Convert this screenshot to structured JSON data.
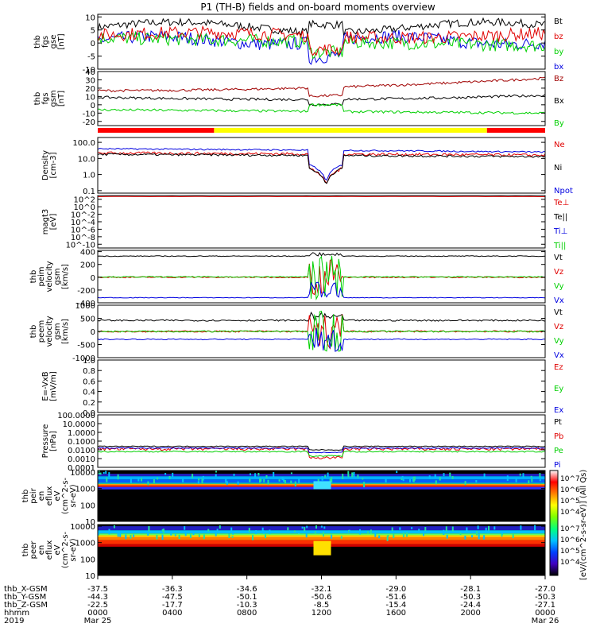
{
  "title": "P1 (TH-B) fields and on-board moments overview",
  "panels": [
    {
      "id": "fgs-gse",
      "label_lines": [
        "thb",
        "fgs",
        "gse",
        "[nT]"
      ],
      "ticks": [
        "10",
        "5",
        "0",
        "-5",
        "-10"
      ],
      "tick_vals": [
        10,
        5,
        0,
        -5,
        -10
      ],
      "ymin": -10,
      "ymax": 11,
      "legend": [
        {
          "name": "Bt",
          "color": "#000000"
        },
        {
          "name": "bz",
          "color": "#e00000"
        },
        {
          "name": "by",
          "color": "#00d000"
        },
        {
          "name": "bx",
          "color": "#0000e0"
        }
      ]
    },
    {
      "id": "fgs-gsm",
      "label_lines": [
        "thb",
        "fgs",
        "gsm",
        "[nT]"
      ],
      "ticks": [
        "40",
        "30",
        "20",
        "10",
        "0",
        "-10",
        "-20"
      ],
      "tick_vals": [
        40,
        30,
        20,
        10,
        0,
        -10,
        -20
      ],
      "ymin": -25,
      "ymax": 40,
      "legend": [
        {
          "name": "Bz",
          "color": "#a00000"
        },
        {
          "name": "Bx",
          "color": "#000000"
        },
        {
          "name": "By",
          "color": "#00d000"
        }
      ]
    },
    {
      "id": "density",
      "label_lines": [
        "Density",
        "[cm-3]"
      ],
      "ticks": [
        "100.0",
        "10.0",
        "1.0",
        "0.1"
      ],
      "tick_vals": [
        100,
        10,
        1,
        0.1
      ],
      "log": true,
      "ymin": 0.07,
      "ymax": 200,
      "legend": [
        {
          "name": "Ne",
          "color": "#e00000"
        },
        {
          "name": "Ni",
          "color": "#000000"
        },
        {
          "name": "Npot",
          "color": "#0000e0"
        }
      ]
    },
    {
      "id": "temperature",
      "label_lines": [
        "magt3",
        "[eV]"
      ],
      "ticks": [
        "10^2",
        "10^0",
        "10^-2",
        "10^-4",
        "10^-6",
        "10^-8",
        "10^-10"
      ],
      "tick_vals": [
        2,
        0,
        -2,
        -4,
        -6,
        -8,
        -10
      ],
      "ymin": -11,
      "ymax": 3,
      "legend": [
        {
          "name": "Te⊥",
          "color": "#e00000"
        },
        {
          "name": "Te||",
          "color": "#000000"
        },
        {
          "name": "Ti⊥",
          "color": "#0000e0"
        },
        {
          "name": "Ti||",
          "color": "#00d000"
        }
      ]
    },
    {
      "id": "peim-velocity",
      "label_lines": [
        "thb",
        "peim",
        "velocity",
        "gsm",
        "[km/s]"
      ],
      "ticks": [
        "400",
        "200",
        "0",
        "-200",
        "-400"
      ],
      "tick_vals": [
        400,
        200,
        0,
        -200,
        -400
      ],
      "ymin": -400,
      "ymax": 420,
      "legend": [
        {
          "name": "Vt",
          "color": "#000000"
        },
        {
          "name": "Vz",
          "color": "#e00000"
        },
        {
          "name": "Vy",
          "color": "#00d000"
        },
        {
          "name": "Vx",
          "color": "#0000e0"
        }
      ]
    },
    {
      "id": "peem-velocity",
      "label_lines": [
        "thb",
        "peem",
        "velocity",
        "gsm",
        "[km/s]"
      ],
      "ticks": [
        "1000",
        "500",
        "0",
        "-500",
        "-1000"
      ],
      "tick_vals": [
        1000,
        500,
        0,
        -500,
        -1000
      ],
      "ymin": -1000,
      "ymax": 1000,
      "legend": [
        {
          "name": "Vt",
          "color": "#000000"
        },
        {
          "name": "Vz",
          "color": "#e00000"
        },
        {
          "name": "Vy",
          "color": "#00d000"
        },
        {
          "name": "Vx",
          "color": "#0000e0"
        }
      ]
    },
    {
      "id": "efield",
      "label_lines": [
        "E=-VxB",
        "[mV/m]"
      ],
      "ticks": [
        "1.0",
        "0.8",
        "0.6",
        "0.4",
        "0.2",
        "0.0"
      ],
      "tick_vals": [
        1,
        0.8,
        0.6,
        0.4,
        0.2,
        0
      ],
      "ymin": 0,
      "ymax": 1,
      "legend": [
        {
          "name": "Ez",
          "color": "#e00000"
        },
        {
          "name": "Ey",
          "color": "#00d000"
        },
        {
          "name": "Ex",
          "color": "#0000e0"
        }
      ]
    },
    {
      "id": "pressure",
      "label_lines": [
        "Pressure",
        "[nPa]"
      ],
      "ticks": [
        "100.0000",
        "10.0000",
        "1.0000",
        "0.1000",
        "0.0100",
        "0.0010",
        "0.0001"
      ],
      "tick_vals": [
        2,
        1,
        0,
        -1,
        -2,
        -3,
        -4
      ],
      "ymin": -4,
      "ymax": 2,
      "legend": [
        {
          "name": "Pt",
          "color": "#000000"
        },
        {
          "name": "Pb",
          "color": "#e00000"
        },
        {
          "name": "Pe",
          "color": "#00d000"
        },
        {
          "name": "Pi",
          "color": "#0000e0"
        }
      ]
    },
    {
      "id": "peir-eflux",
      "label_lines": [
        "thb",
        "peir",
        "en",
        "eflux",
        "eV",
        "(cm^2-s-",
        "sr-eV)"
      ],
      "ticks": [
        "10000",
        "1000",
        "100",
        "10"
      ],
      "tick_vals": [
        4,
        3,
        2,
        1
      ],
      "ymin": 1,
      "ymax": 4.1,
      "legend": []
    },
    {
      "id": "peer-eflux",
      "label_lines": [
        "thb",
        "peer",
        "en",
        "eflux",
        "eV",
        "(cm^2-s-",
        "sr-eV)"
      ],
      "ticks": [
        "10000",
        "1000",
        "100",
        "10"
      ],
      "tick_vals": [
        4,
        3,
        2,
        1
      ],
      "ymin": 1,
      "ymax": 4.1,
      "legend": []
    }
  ],
  "colorbar": {
    "label": "[eV/(cm^2-s-sr-eV)] (All Qs)",
    "ticks_upper": [
      "10^7",
      "10^6",
      "10^5",
      "10^4"
    ],
    "ticks_lower": [
      "10^7",
      "10^6",
      "10^5",
      "10^4"
    ]
  },
  "mode_bar": [
    {
      "from": 0,
      "to": 0.26,
      "color": "#ff0000"
    },
    {
      "from": 0.26,
      "to": 0.87,
      "color": "#ffff00"
    },
    {
      "from": 0.87,
      "to": 1,
      "color": "#ff0000"
    }
  ],
  "x_axis": {
    "rows": [
      {
        "label": "thb_X-GSM",
        "values": [
          "-37.5",
          "-36.3",
          "-34.6",
          "-32.1",
          "-29.0",
          "-28.1",
          "-27.0"
        ]
      },
      {
        "label": "thb_Y-GSM",
        "values": [
          "-44.3",
          "-47.5",
          "-50.1",
          "-50.6",
          "-51.6",
          "-50.3",
          "-50.3"
        ]
      },
      {
        "label": "thb_Z-GSM",
        "values": [
          "-22.5",
          "-17.7",
          "-10.3",
          "-8.5",
          "-15.4",
          "-24.4",
          "-27.1"
        ]
      },
      {
        "label": "hhmm",
        "values": [
          "0000",
          "0400",
          "0800",
          "1200",
          "1600",
          "2000",
          "0000"
        ]
      },
      {
        "label": "2019",
        "values": [
          "Mar 25",
          "",
          "",
          "",
          "",
          "",
          "Mar 26"
        ]
      }
    ]
  },
  "chart_data": {
    "type": "line",
    "title": "P1 (TH-B) fields and on-board moments overview",
    "x": [
      "0000",
      "0400",
      "0800",
      "1200",
      "1600",
      "2000",
      "0000"
    ],
    "xlabel": "hhmm",
    "series_summary": [
      {
        "name": "Bt",
        "values": [
          6,
          8,
          7,
          6,
          7,
          8,
          9
        ]
      },
      {
        "name": "bz",
        "values": [
          3,
          2,
          2,
          -2,
          2,
          2,
          3
        ]
      },
      {
        "name": "by",
        "values": [
          1,
          0,
          -1,
          -4,
          -5,
          -4,
          -5
        ]
      },
      {
        "name": "bx",
        "values": [
          1,
          -2,
          -1,
          0,
          1,
          0,
          1
        ]
      },
      {
        "name": "Bz",
        "values": [
          18,
          15,
          12,
          5,
          18,
          25,
          32
        ]
      },
      {
        "name": "Bx",
        "values": [
          10,
          8,
          5,
          2,
          8,
          12,
          10
        ]
      },
      {
        "name": "By",
        "values": [
          -8,
          -5,
          -8,
          -5,
          -8,
          -10,
          -18
        ]
      },
      {
        "name": "Ni",
        "values": [
          20,
          20,
          18,
          0.2,
          15,
          15,
          15
        ]
      },
      {
        "name": "Vt",
        "values": [
          330,
          330,
          320,
          350,
          330,
          330,
          330
        ]
      },
      {
        "name": "Vx",
        "values": [
          -310,
          -310,
          -310,
          -350,
          -310,
          -310,
          -310
        ]
      }
    ]
  }
}
